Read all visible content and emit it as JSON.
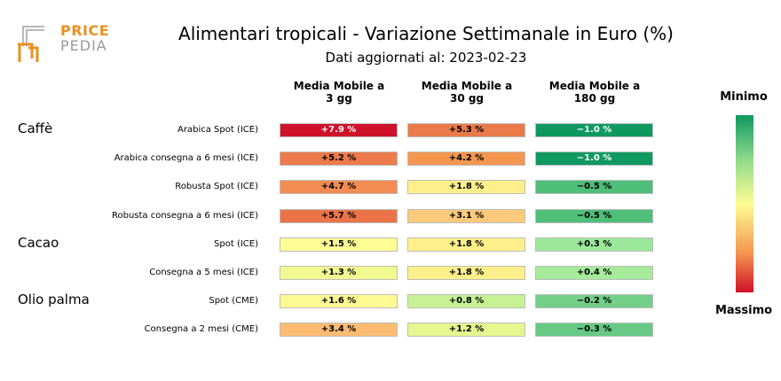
{
  "logo": {
    "line1": "PRICE",
    "line2": "PEDIA"
  },
  "title": "Alimentari tropicali - Variazione Settimanale in Euro (%)",
  "subtitle": "Dati aggiornati al: 2023-02-23",
  "columns": [
    "Media Mobile a\n3 gg",
    "Media Mobile a\n30 gg",
    "Media Mobile a\n180 gg"
  ],
  "groups": [
    "Caffè",
    "Cacao",
    "Olio palma"
  ],
  "scale": {
    "top_label": "Minimo",
    "bottom_label": "Massimo"
  },
  "chart_data": {
    "type": "heatmap",
    "title": "Alimentari tropicali - Variazione Settimanale in Euro (%)",
    "columns": [
      "Media Mobile a 3 gg",
      "Media Mobile a 30 gg",
      "Media Mobile a 180 gg"
    ],
    "rows": [
      {
        "group": "Caffè",
        "label": "Arabica Spot (ICE)",
        "cells": [
          {
            "text": "+7.9 %",
            "color": "#d0112a",
            "text_color": "#ffffff"
          },
          {
            "text": "+5.3 %",
            "color": "#eb7a4a",
            "text_color": "#000000"
          },
          {
            "text": "−1.0 %",
            "color": "#0f9960",
            "text_color": "#ffffff"
          }
        ]
      },
      {
        "group": "Caffè",
        "label": "Arabica consegna a 6 mesi (ICE)",
        "cells": [
          {
            "text": "+5.2 %",
            "color": "#ec7a4a",
            "text_color": "#000000"
          },
          {
            "text": "+4.2 %",
            "color": "#f5964f",
            "text_color": "#000000"
          },
          {
            "text": "−1.0 %",
            "color": "#0f9960",
            "text_color": "#ffffff"
          }
        ]
      },
      {
        "group": "Caffè",
        "label": "Robusta Spot (ICE)",
        "cells": [
          {
            "text": "+4.7 %",
            "color": "#f28c52",
            "text_color": "#000000"
          },
          {
            "text": "+1.8 %",
            "color": "#fdf08a",
            "text_color": "#000000"
          },
          {
            "text": "−0.5 %",
            "color": "#4fbe79",
            "text_color": "#000000"
          }
        ]
      },
      {
        "group": "Caffè",
        "label": "Robusta consegna a 6 mesi (ICE)",
        "cells": [
          {
            "text": "+5.7 %",
            "color": "#ea7448",
            "text_color": "#000000"
          },
          {
            "text": "+3.1 %",
            "color": "#fdc97b",
            "text_color": "#000000"
          },
          {
            "text": "−0.5 %",
            "color": "#4fbe79",
            "text_color": "#000000"
          }
        ]
      },
      {
        "group": "Cacao",
        "label": "Spot (ICE)",
        "cells": [
          {
            "text": "+1.5 %",
            "color": "#fdfd94",
            "text_color": "#000000"
          },
          {
            "text": "+1.8 %",
            "color": "#fdf08a",
            "text_color": "#000000"
          },
          {
            "text": "+0.3 %",
            "color": "#9be89b",
            "text_color": "#000000"
          }
        ]
      },
      {
        "group": "Cacao",
        "label": "Consegna a 5 mesi (ICE)",
        "cells": [
          {
            "text": "+1.3 %",
            "color": "#f1fa90",
            "text_color": "#000000"
          },
          {
            "text": "+1.8 %",
            "color": "#fdf08a",
            "text_color": "#000000"
          },
          {
            "text": "+0.4 %",
            "color": "#a6eb9a",
            "text_color": "#000000"
          }
        ]
      },
      {
        "group": "Olio palma",
        "label": "Spot (CME)",
        "cells": [
          {
            "text": "+1.6 %",
            "color": "#fdfa92",
            "text_color": "#000000"
          },
          {
            "text": "+0.8 %",
            "color": "#c6f294",
            "text_color": "#000000"
          },
          {
            "text": "−0.2 %",
            "color": "#72d088",
            "text_color": "#000000"
          }
        ]
      },
      {
        "group": "Olio palma",
        "label": "Consegna a 2 mesi (CME)",
        "cells": [
          {
            "text": "+3.4 %",
            "color": "#fdbc72",
            "text_color": "#000000"
          },
          {
            "text": "+1.2 %",
            "color": "#e6f78f",
            "text_color": "#000000"
          },
          {
            "text": "−0.3 %",
            "color": "#66ca84",
            "text_color": "#000000"
          }
        ]
      }
    ],
    "colorbar": {
      "top": "Minimo",
      "bottom": "Massimo",
      "colors": [
        "#0f9960",
        "#8fd98a",
        "#fdfd94",
        "#f5934f",
        "#d0112a"
      ]
    }
  }
}
